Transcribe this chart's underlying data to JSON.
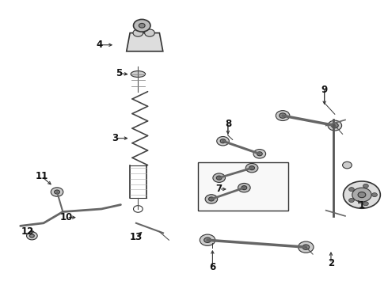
{
  "background_color": "#ffffff",
  "fig_width": 4.9,
  "fig_height": 3.6,
  "dpi": 100,
  "line_color": "#333333",
  "text_color": "#111111",
  "label_font_size": 8.5,
  "label_positions": {
    "1": [
      0.935,
      0.278,
      -0.015,
      0.025
    ],
    "2": [
      0.855,
      0.072,
      0.0,
      0.05
    ],
    "3": [
      0.295,
      0.515,
      0.04,
      0.0
    ],
    "4": [
      0.255,
      0.845,
      0.04,
      0.0
    ],
    "5": [
      0.305,
      0.745,
      0.03,
      -0.005
    ],
    "6": [
      0.548,
      0.058,
      0.0,
      0.07
    ],
    "7": [
      0.565,
      0.335,
      0.025,
      0.0
    ],
    "8": [
      0.588,
      0.565,
      0.0,
      -0.045
    ],
    "9": [
      0.838,
      0.685,
      0.0,
      -0.06
    ],
    "10": [
      0.17,
      0.235,
      0.03,
      0.0
    ],
    "11": [
      0.105,
      0.38,
      0.03,
      -0.035
    ],
    "12": [
      0.068,
      0.185,
      0.025,
      0.0
    ],
    "13": [
      0.35,
      0.165,
      0.02,
      0.025
    ]
  }
}
